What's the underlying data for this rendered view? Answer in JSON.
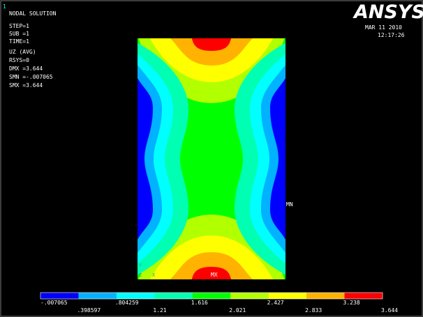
{
  "window_number": "1",
  "info": [
    "NODAL SOLUTION",
    "STEP=1",
    "SUB =1",
    "TIME=1",
    "UZ       (AVG)",
    "RSYS=0",
    "DMX =3.644",
    "SMN =-.007065",
    "SMX =3.644"
  ],
  "logo": "ANSYS",
  "date": "MAR 11 2010",
  "time": "12:17:26",
  "markers": {
    "min": "MN",
    "max": "MX"
  },
  "axes": [
    "Y",
    "Z",
    "X"
  ],
  "legend": {
    "colors": [
      "#0000ff",
      "#00b2ff",
      "#00ffff",
      "#00ffb2",
      "#00ff00",
      "#b2ff00",
      "#ffff00",
      "#ffb200",
      "#ff0000"
    ],
    "labels": [
      "-.007065",
      ".398597",
      ".804259",
      "1.21",
      "1.616",
      "2.021",
      "2.427",
      "2.833",
      "3.238",
      "3.644"
    ]
  }
}
